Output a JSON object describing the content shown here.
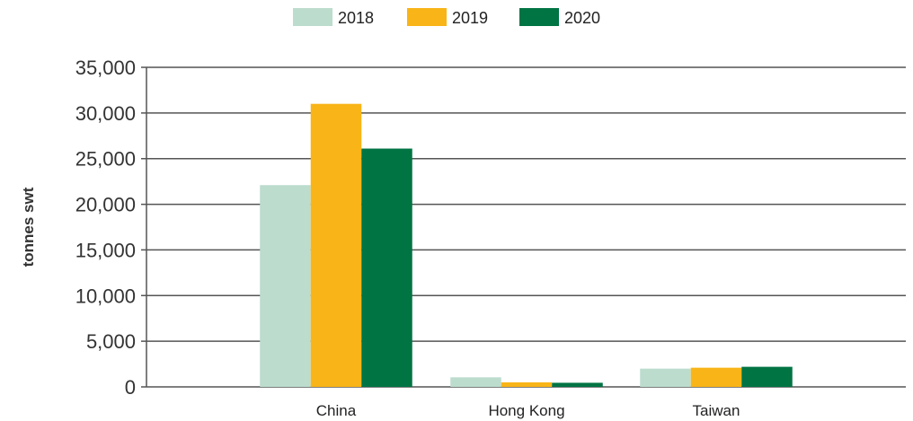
{
  "chart_data": {
    "type": "bar",
    "title": "",
    "xlabel": "",
    "ylabel": "tonnes swt",
    "categories": [
      "China",
      "Hong Kong",
      "Taiwan"
    ],
    "series": [
      {
        "name": "2018",
        "color": "#bcdccd",
        "values": [
          22100,
          1050,
          2000
        ]
      },
      {
        "name": "2019",
        "color": "#f9b417",
        "values": [
          31000,
          500,
          2100
        ]
      },
      {
        "name": "2020",
        "color": "#007443",
        "values": [
          26100,
          450,
          2200
        ]
      }
    ],
    "ylim": [
      0,
      35000
    ],
    "yticks": [
      "0",
      "5,000",
      "10,000",
      "15,000",
      "20,000",
      "25,000",
      "30,000",
      "35,000"
    ],
    "grid": true,
    "legend_position": "top-center"
  }
}
